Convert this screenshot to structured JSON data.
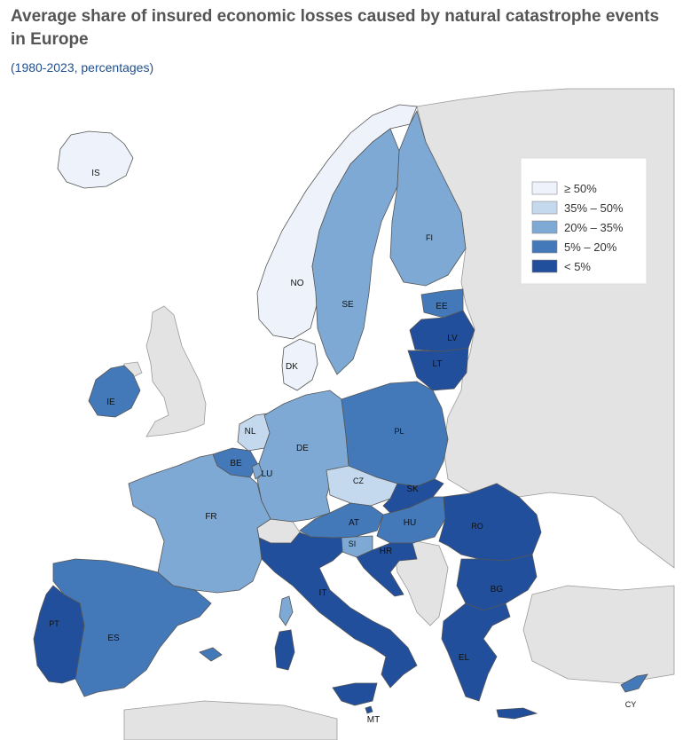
{
  "header": {
    "title": "Average share of insured economic losses caused by natural catastrophe events in Europe",
    "subtitle": "(1980-2023, percentages)"
  },
  "colors": {
    "ge50": "#eef3fb",
    "c35_50": "#c5d9ee",
    "c20_35": "#7ea9d4",
    "c5_20": "#4479b9",
    "lt5": "#214f9c",
    "nodata": "#e3e3e3",
    "sea": "#ffffff"
  },
  "legend": {
    "items": [
      {
        "label": "≥ 50%",
        "class": "ge50"
      },
      {
        "label": "35% – 50%",
        "class": "c35_50"
      },
      {
        "label": "20% – 35%",
        "class": "c20_35"
      },
      {
        "label": "5% – 20%",
        "class": "c5_20"
      },
      {
        "label": "< 5%",
        "class": "lt5"
      }
    ]
  },
  "countries": {
    "IS": {
      "label": "IS",
      "class": "ge50"
    },
    "NO": {
      "label": "NO",
      "class": "ge50"
    },
    "SE": {
      "label": "SE",
      "class": "c20_35"
    },
    "FI": {
      "label": "FI",
      "class": "c20_35"
    },
    "EE": {
      "label": "EE",
      "class": "c5_20"
    },
    "LV": {
      "label": "LV",
      "class": "lt5"
    },
    "LT": {
      "label": "LT",
      "class": "lt5"
    },
    "DK": {
      "label": "DK",
      "class": "ge50"
    },
    "IE": {
      "label": "IE",
      "class": "c5_20"
    },
    "NL": {
      "label": "NL",
      "class": "c35_50"
    },
    "BE": {
      "label": "BE",
      "class": "c5_20"
    },
    "LU": {
      "label": "LU",
      "class": "c20_35"
    },
    "DE": {
      "label": "DE",
      "class": "c20_35"
    },
    "PL": {
      "label": "PL",
      "class": "c5_20"
    },
    "CZ": {
      "label": "CZ",
      "class": "c35_50"
    },
    "SK": {
      "label": "SK",
      "class": "lt5"
    },
    "AT": {
      "label": "AT",
      "class": "c5_20"
    },
    "HU": {
      "label": "HU",
      "class": "c5_20"
    },
    "SI": {
      "label": "SI",
      "class": "c20_35"
    },
    "HR": {
      "label": "HR",
      "class": "lt5"
    },
    "RO": {
      "label": "RO",
      "class": "lt5"
    },
    "BG": {
      "label": "BG",
      "class": "lt5"
    },
    "FR": {
      "label": "FR",
      "class": "c20_35"
    },
    "ES": {
      "label": "ES",
      "class": "c5_20"
    },
    "PT": {
      "label": "PT",
      "class": "lt5"
    },
    "IT": {
      "label": "IT",
      "class": "lt5"
    },
    "EL": {
      "label": "EL",
      "class": "lt5"
    },
    "MT": {
      "label": "MT",
      "class": "lt5"
    },
    "CY": {
      "label": "CY",
      "class": "c5_20"
    }
  }
}
